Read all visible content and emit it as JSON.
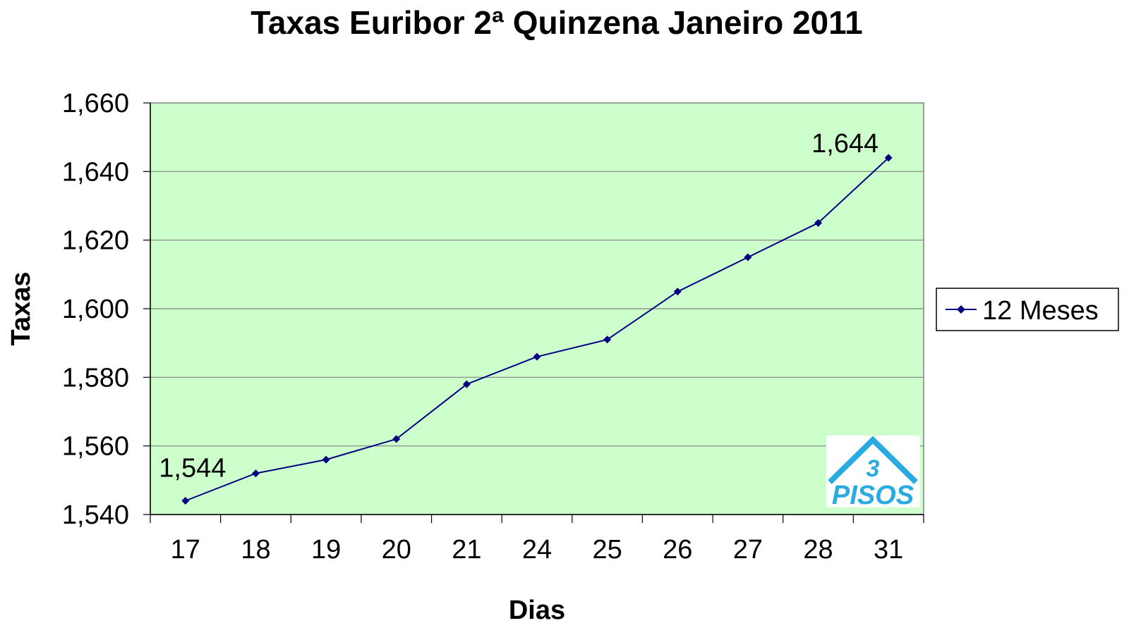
{
  "chart_data": {
    "type": "line",
    "title": "Taxas Euribor 2ª Quinzena Janeiro 2011",
    "xlabel": "Dias",
    "ylabel": "Taxas",
    "categories": [
      "17",
      "18",
      "19",
      "20",
      "21",
      "24",
      "25",
      "26",
      "27",
      "28",
      "31"
    ],
    "series": [
      {
        "name": "12 Meses",
        "values": [
          1.544,
          1.552,
          1.556,
          1.562,
          1.578,
          1.586,
          1.591,
          1.605,
          1.615,
          1.625,
          1.644
        ]
      }
    ],
    "ylim": [
      1.54,
      1.66
    ],
    "yticks": [
      1.54,
      1.56,
      1.58,
      1.6,
      1.62,
      1.64,
      1.66
    ],
    "ytick_labels": [
      "1,540",
      "1,560",
      "1,580",
      "1,600",
      "1,620",
      "1,640",
      "1,660"
    ],
    "data_labels": [
      {
        "index": 0,
        "text": "1,544"
      },
      {
        "index": 10,
        "text": "1,644"
      }
    ],
    "grid": true,
    "legend": "right",
    "colors": {
      "plot_background": "#CCFFCC",
      "line": "#000080",
      "grid": "#808080",
      "logo": "#29ABE2"
    }
  },
  "logo": {
    "number": "3",
    "text": "PISOS"
  }
}
